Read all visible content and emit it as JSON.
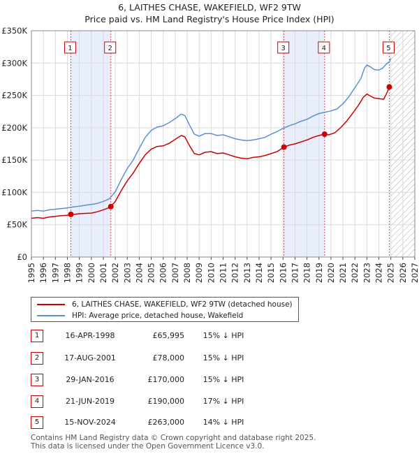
{
  "title": {
    "line1": "6, LAITHES CHASE, WAKEFIELD, WF2 9TW",
    "line2": "Price paid vs. HM Land Registry's House Price Index (HPI)"
  },
  "colors": {
    "property": "#cc0000",
    "hpi": "#5b8fd4",
    "shade": "#e8eefc",
    "grid": "#d9d9d9"
  },
  "chart_data": {
    "type": "line",
    "title": "Price paid vs. HM Land Registry's House Price Index (HPI)",
    "xlabel": "",
    "ylabel": "",
    "xlim": [
      1995,
      2027
    ],
    "ylim": [
      0,
      350000
    ],
    "yticks": [
      0,
      50000,
      100000,
      150000,
      200000,
      250000,
      300000,
      350000
    ],
    "ytick_labels": [
      "£0",
      "£50K",
      "£100K",
      "£150K",
      "£200K",
      "£250K",
      "£300K",
      "£350K"
    ],
    "xticks": [
      "1995",
      "1996",
      "1997",
      "1998",
      "1999",
      "2000",
      "2001",
      "2002",
      "2003",
      "2004",
      "2005",
      "2006",
      "2007",
      "2008",
      "2009",
      "2010",
      "2011",
      "2012",
      "2013",
      "2014",
      "2015",
      "2016",
      "2017",
      "2018",
      "2019",
      "2020",
      "2021",
      "2022",
      "2023",
      "2024",
      "2025",
      "2026",
      "2027"
    ],
    "series": [
      {
        "name": "6, LAITHES CHASE, WAKEFIELD, WF2 9TW (detached house)",
        "x": [
          1995.0,
          1995.5,
          1996.0,
          1996.5,
          1997.0,
          1997.5,
          1998.0,
          1998.29,
          1998.6,
          1999.0,
          1999.5,
          2000.0,
          2000.5,
          2001.0,
          2001.3,
          2001.63,
          2002.0,
          2002.5,
          2003.0,
          2003.5,
          2004.0,
          2004.5,
          2005.0,
          2005.5,
          2006.0,
          2006.5,
          2007.0,
          2007.5,
          2007.8,
          2008.2,
          2008.6,
          2009.0,
          2009.5,
          2010.0,
          2010.5,
          2011.0,
          2011.5,
          2012.0,
          2012.5,
          2013.0,
          2013.5,
          2014.0,
          2014.5,
          2015.0,
          2015.5,
          2016.08,
          2016.5,
          2017.0,
          2017.5,
          2018.0,
          2018.5,
          2019.0,
          2019.47,
          2019.8,
          2020.3,
          2020.8,
          2021.3,
          2021.8,
          2022.3,
          2022.7,
          2023.0,
          2023.3,
          2023.6,
          2024.0,
          2024.4,
          2024.7,
          2024.87
        ],
        "values": [
          60000,
          61000,
          60000,
          62000,
          63000,
          64000,
          64500,
          65995,
          66000,
          67000,
          67500,
          68000,
          70000,
          73000,
          75000,
          78000,
          86000,
          103000,
          118000,
          130000,
          145000,
          158000,
          167000,
          171000,
          172000,
          176000,
          182000,
          188000,
          186000,
          172000,
          160000,
          158000,
          162000,
          163000,
          160000,
          161000,
          158000,
          155000,
          153000,
          152000,
          154000,
          155000,
          157000,
          160000,
          163000,
          170000,
          173000,
          175000,
          178000,
          181000,
          185000,
          188000,
          190000,
          189000,
          192000,
          200000,
          210000,
          222000,
          235000,
          247000,
          252000,
          249000,
          246000,
          245000,
          244000,
          255000,
          263000
        ]
      },
      {
        "name": "HPI: Average price, detached house, Wakefield",
        "x": [
          1995.0,
          1995.5,
          1996.0,
          1996.5,
          1997.0,
          1997.5,
          1998.0,
          1998.5,
          1999.0,
          1999.5,
          2000.0,
          2000.5,
          2001.0,
          2001.5,
          2002.0,
          2002.5,
          2003.0,
          2003.5,
          2004.0,
          2004.5,
          2005.0,
          2005.5,
          2006.0,
          2006.5,
          2007.0,
          2007.5,
          2007.8,
          2008.2,
          2008.6,
          2009.0,
          2009.5,
          2010.0,
          2010.5,
          2011.0,
          2011.5,
          2012.0,
          2012.5,
          2013.0,
          2013.5,
          2014.0,
          2014.5,
          2015.0,
          2015.5,
          2016.0,
          2016.5,
          2017.0,
          2017.5,
          2018.0,
          2018.5,
          2019.0,
          2019.5,
          2020.0,
          2020.5,
          2021.0,
          2021.5,
          2022.0,
          2022.5,
          2022.8,
          2023.0,
          2023.3,
          2023.6,
          2024.0,
          2024.3,
          2024.6,
          2024.87,
          2025.0
        ],
        "values": [
          71000,
          72000,
          71000,
          73000,
          74000,
          75000,
          76000,
          77500,
          78500,
          80000,
          81500,
          83000,
          86000,
          90000,
          101000,
          120000,
          137000,
          150000,
          168000,
          185000,
          196000,
          201000,
          203000,
          208000,
          214000,
          221000,
          219000,
          204000,
          190000,
          187000,
          191000,
          191000,
          188000,
          189000,
          186000,
          183000,
          181000,
          180000,
          181000,
          183000,
          185000,
          190000,
          194000,
          199000,
          203000,
          206000,
          210000,
          213000,
          218000,
          222000,
          224000,
          226000,
          229000,
          237000,
          248000,
          262000,
          276000,
          292000,
          297000,
          294000,
          290000,
          289000,
          292000,
          298000,
          302000,
          307000
        ]
      }
    ],
    "sales": [
      {
        "num": "1",
        "x": 1998.29,
        "value": 65995
      },
      {
        "num": "2",
        "x": 2001.63,
        "value": 78000
      },
      {
        "num": "3",
        "x": 2016.08,
        "value": 170000
      },
      {
        "num": "4",
        "x": 2019.47,
        "value": 190000
      },
      {
        "num": "5",
        "x": 2024.87,
        "value": 263000
      }
    ],
    "shaded_ranges": [
      [
        1998.29,
        2001.63
      ],
      [
        2016.08,
        2019.47
      ]
    ],
    "hatch_from": 2025.0
  },
  "legend": {
    "property_label": "6, LAITHES CHASE, WAKEFIELD, WF2 9TW (detached house)",
    "hpi_label": "HPI: Average price, detached house, Wakefield"
  },
  "sales_table": [
    {
      "num": "1",
      "date": "16-APR-1998",
      "price": "£65,995",
      "hpi": "15% ↓ HPI"
    },
    {
      "num": "2",
      "date": "17-AUG-2001",
      "price": "£78,000",
      "hpi": "15% ↓ HPI"
    },
    {
      "num": "3",
      "date": "29-JAN-2016",
      "price": "£170,000",
      "hpi": "15% ↓ HPI"
    },
    {
      "num": "4",
      "date": "21-JUN-2019",
      "price": "£190,000",
      "hpi": "17% ↓ HPI"
    },
    {
      "num": "5",
      "date": "15-NOV-2024",
      "price": "£263,000",
      "hpi": "14% ↓ HPI"
    }
  ],
  "footer": {
    "line1": "Contains HM Land Registry data © Crown copyright and database right 2025.",
    "line2": "This data is licensed under the Open Government Licence v3.0."
  }
}
